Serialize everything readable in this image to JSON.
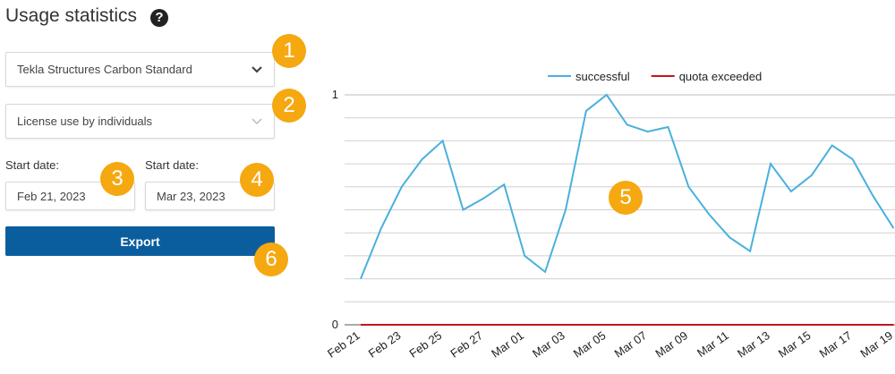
{
  "header": {
    "title": "Usage statistics",
    "help_icon": "?"
  },
  "form": {
    "product": "Tekla Structures Carbon Standard",
    "report": "License use by individuals",
    "start_label": "Start date:",
    "start": "Feb 21, 2023",
    "end_label": "Start date:",
    "end": "Mar 23, 2023",
    "export": "Export"
  },
  "callouts": [
    "1",
    "2",
    "3",
    "4",
    "5",
    "6"
  ],
  "chart_data": {
    "type": "line",
    "categories": [
      "Feb 21",
      null,
      "Feb 23",
      null,
      "Feb 25",
      null,
      "Feb 27",
      null,
      "Mar 01",
      null,
      "Mar 03",
      null,
      "Mar 05",
      null,
      "Mar 07",
      null,
      "Mar 09",
      null,
      "Mar 11",
      null,
      "Mar 13",
      null,
      "Mar 15",
      null,
      "Mar 17",
      null,
      "Mar 19"
    ],
    "series": [
      {
        "name": "successful",
        "color": "#4ab0dd",
        "values": [
          0.2,
          0.42,
          0.6,
          0.72,
          0.8,
          0.5,
          0.55,
          0.61,
          0.3,
          0.23,
          0.5,
          0.93,
          1.0,
          0.87,
          0.84,
          0.86,
          0.6,
          0.48,
          0.38,
          0.32,
          0.7,
          0.58,
          0.65,
          0.78,
          0.72,
          0.56,
          0.42
        ]
      },
      {
        "name": "quota exceeded",
        "color": "#c0161c",
        "values": [
          0,
          0,
          0,
          0,
          0,
          0,
          0,
          0,
          0,
          0,
          0,
          0,
          0,
          0,
          0,
          0,
          0,
          0,
          0,
          0,
          0,
          0,
          0,
          0,
          0,
          0,
          0
        ]
      }
    ],
    "ylim": [
      0,
      1
    ],
    "yticks": [
      0,
      1
    ],
    "minor_yticks": [
      0.1,
      0.2,
      0.3,
      0.4,
      0.5,
      0.6,
      0.7,
      0.8,
      0.9
    ],
    "grid": true
  }
}
